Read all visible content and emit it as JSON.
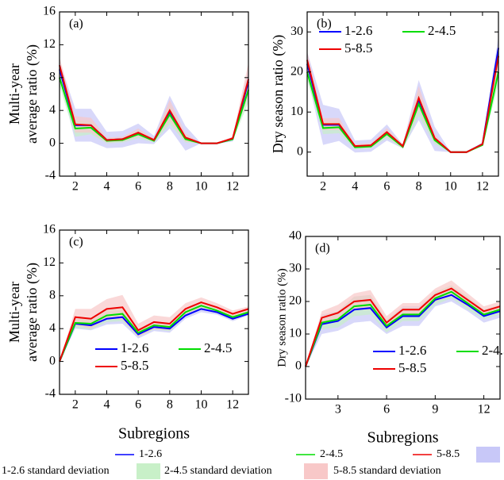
{
  "chart_data": [
    {
      "type": "line",
      "panel_label": "(a)",
      "ylabel": [
        "Multi-year",
        "average ratio (%)"
      ],
      "xlim": [
        1,
        13
      ],
      "xticks": [
        2,
        4,
        6,
        8,
        10,
        12
      ],
      "ylim": [
        -4,
        16
      ],
      "yticks": [
        -4,
        0,
        4,
        8,
        12,
        16
      ],
      "x": [
        1,
        2,
        3,
        4,
        5,
        6,
        7,
        8,
        9,
        10,
        11,
        12,
        13
      ],
      "series": [
        {
          "name": "1-2.6",
          "color": "#0000ff",
          "band_color": "#c8c8f8",
          "values": [
            9,
            2.2,
            2.2,
            0.4,
            0.5,
            1.2,
            0.4,
            3.8,
            0.6,
            0,
            0,
            0.5,
            7.5
          ],
          "std": [
            1,
            2,
            2,
            1,
            1,
            1.2,
            0.5,
            2,
            1.5,
            0,
            0,
            0.3,
            1.5
          ]
        },
        {
          "name": "2-4.5",
          "color": "#00dd00",
          "band_color": "#c8f0c8",
          "values": [
            8,
            1.8,
            1.9,
            0.3,
            0.4,
            1.1,
            0.3,
            3.5,
            0.5,
            0,
            0,
            0.5,
            6.5
          ],
          "std": [
            1,
            1,
            0.8,
            0.3,
            0.3,
            0.5,
            0.2,
            1.2,
            0.4,
            0,
            0,
            0.2,
            1.5
          ]
        },
        {
          "name": "5-8.5",
          "color": "#ee0000",
          "band_color": "#f8c8c8",
          "values": [
            9.5,
            2.3,
            2.2,
            0.4,
            0.5,
            1.3,
            0.4,
            4,
            0.7,
            0,
            0,
            0.6,
            7.8
          ],
          "std": [
            1,
            1,
            0.9,
            0.3,
            0.3,
            0.5,
            0.2,
            1.3,
            0.5,
            0,
            0,
            0.2,
            2
          ]
        }
      ]
    },
    {
      "type": "line",
      "panel_label": "(b)",
      "ylabel": [
        "Dry season ratio (%)"
      ],
      "legend": "upper right",
      "xlim": [
        1,
        13
      ],
      "xticks": [
        2,
        4,
        6,
        8,
        10,
        12
      ],
      "ylim": [
        -6,
        35
      ],
      "yticks": [
        0,
        10,
        20,
        30
      ],
      "x": [
        1,
        2,
        3,
        4,
        5,
        6,
        7,
        8,
        9,
        10,
        11,
        12,
        13
      ],
      "series": [
        {
          "name": "1-2.6",
          "color": "#0000ff",
          "band_color": "#c8c8f8",
          "values": [
            22,
            6.8,
            6.8,
            1.4,
            1.6,
            4.9,
            1.4,
            13,
            3.3,
            0,
            0,
            2,
            26
          ],
          "std": [
            3,
            5,
            4,
            1.5,
            1.5,
            2,
            0.5,
            5,
            3,
            0,
            0,
            0.5,
            3
          ]
        },
        {
          "name": "2-4.5",
          "color": "#00dd00",
          "band_color": "#c8f0c8",
          "values": [
            20,
            6,
            6.2,
            1.2,
            1.4,
            4.5,
            1.3,
            12,
            3,
            0,
            0,
            1.8,
            20
          ],
          "std": [
            2,
            1.5,
            1.5,
            0.5,
            0.5,
            1,
            0.5,
            3,
            1,
            0,
            0,
            0.3,
            3
          ]
        },
        {
          "name": "5-8.5",
          "color": "#ee0000",
          "band_color": "#f8c8c8",
          "values": [
            23,
            7,
            7,
            1.5,
            1.7,
            5,
            1.5,
            13.5,
            3.5,
            0,
            0,
            2,
            24
          ],
          "std": [
            2,
            1.5,
            1.5,
            0.5,
            0.5,
            1,
            0.5,
            3,
            1,
            0,
            0,
            0.3,
            3
          ]
        }
      ]
    },
    {
      "type": "line",
      "panel_label": "(c)",
      "ylabel": [
        "Multi-year",
        "average ratio (%)"
      ],
      "xlabel": "Subregions",
      "legend": "lower left",
      "xlim": [
        1,
        13
      ],
      "xticks": [
        2,
        4,
        6,
        8,
        10,
        12
      ],
      "ylim": [
        -4,
        16
      ],
      "yticks": [
        -4,
        0,
        4,
        8,
        12,
        16
      ],
      "x": [
        1,
        2,
        3,
        4,
        5,
        6,
        7,
        8,
        9,
        10,
        11,
        12,
        13
      ],
      "series": [
        {
          "name": "1-2.6",
          "color": "#0000ff",
          "band_color": "#c8c8f8",
          "values": [
            0,
            4.6,
            4.4,
            5.2,
            5.4,
            3.3,
            4.2,
            4,
            5.6,
            6.4,
            6,
            5.2,
            5.8
          ],
          "std": [
            0,
            0.6,
            0.6,
            0.7,
            0.8,
            0.5,
            0.5,
            0.5,
            0.4,
            0.4,
            0.3,
            0.3,
            0.2
          ]
        },
        {
          "name": "2-4.5",
          "color": "#00dd00",
          "band_color": "#c8f0c8",
          "values": [
            0,
            4.7,
            4.6,
            5.6,
            5.8,
            3.5,
            4.4,
            4.2,
            6,
            6.8,
            6.2,
            5.4,
            6
          ],
          "std": [
            0,
            0.6,
            0.7,
            0.8,
            0.9,
            0.5,
            0.5,
            0.5,
            0.5,
            0.4,
            0.3,
            0.3,
            0.2
          ]
        },
        {
          "name": "5-8.5",
          "color": "#ee0000",
          "band_color": "#f8c8c8",
          "values": [
            0,
            5.4,
            5.2,
            6.4,
            6.6,
            3.8,
            4.8,
            4.6,
            6.4,
            7.2,
            6.6,
            5.8,
            6.4
          ],
          "std": [
            0,
            1,
            1.2,
            1.2,
            1.5,
            0.8,
            0.8,
            0.8,
            0.7,
            0.6,
            0.5,
            0.4,
            0.3
          ]
        }
      ]
    },
    {
      "type": "line",
      "panel_label": "(d)",
      "ylabel": [
        "Dry season ratio (%)"
      ],
      "xlabel": "Subregions",
      "legend": "lower center",
      "xlim": [
        1,
        13
      ],
      "xticks": [
        3,
        6,
        9,
        12
      ],
      "ylim": [
        -10,
        40
      ],
      "yticks": [
        -10,
        0,
        10,
        20,
        30,
        40
      ],
      "x": [
        1,
        2,
        3,
        4,
        5,
        6,
        7,
        8,
        9,
        10,
        11,
        12,
        13
      ],
      "series": [
        {
          "name": "1-2.6",
          "color": "#0000ff",
          "band_color": "#c8c8f8",
          "values": [
            0,
            13,
            14,
            17.5,
            18,
            12,
            15.5,
            15.5,
            20.5,
            22,
            19,
            15.5,
            17
          ],
          "std": [
            0,
            3,
            3,
            4,
            4,
            2,
            3,
            3,
            2,
            2,
            2,
            2,
            2
          ]
        },
        {
          "name": "2-4.5",
          "color": "#00dd00",
          "band_color": "#c8f0c8",
          "values": [
            0,
            13.5,
            14.5,
            18.5,
            19,
            12.5,
            16,
            16,
            21,
            23,
            19.5,
            16,
            17.5
          ],
          "std": [
            0,
            2,
            2.5,
            3,
            3,
            2,
            2,
            2,
            2,
            2,
            2,
            1.5,
            1.5
          ]
        },
        {
          "name": "5-8.5",
          "color": "#ee0000",
          "band_color": "#f8c8c8",
          "values": [
            0,
            15,
            16.5,
            20,
            20.5,
            13.5,
            17.5,
            17.5,
            22,
            24,
            20.5,
            17,
            18.5
          ],
          "std": [
            0,
            2,
            2.5,
            2.5,
            3,
            2,
            2,
            2,
            2,
            2.5,
            2,
            1.5,
            1.5
          ]
        }
      ]
    }
  ],
  "legend": {
    "lines": [
      {
        "label": "1-2.6",
        "color": "#0000ff"
      },
      {
        "label": "2-4.5",
        "color": "#00dd00"
      },
      {
        "label": "5-8.5",
        "color": "#ee0000"
      }
    ],
    "bands": [
      {
        "label": "1-2.6 standard deviation",
        "color": "#c8c8f8"
      },
      {
        "label": "2-4.5 standard deviation",
        "color": "#c8f0c8"
      },
      {
        "label": "5-8.5 standard deviation",
        "color": "#f8c8c8"
      }
    ]
  }
}
